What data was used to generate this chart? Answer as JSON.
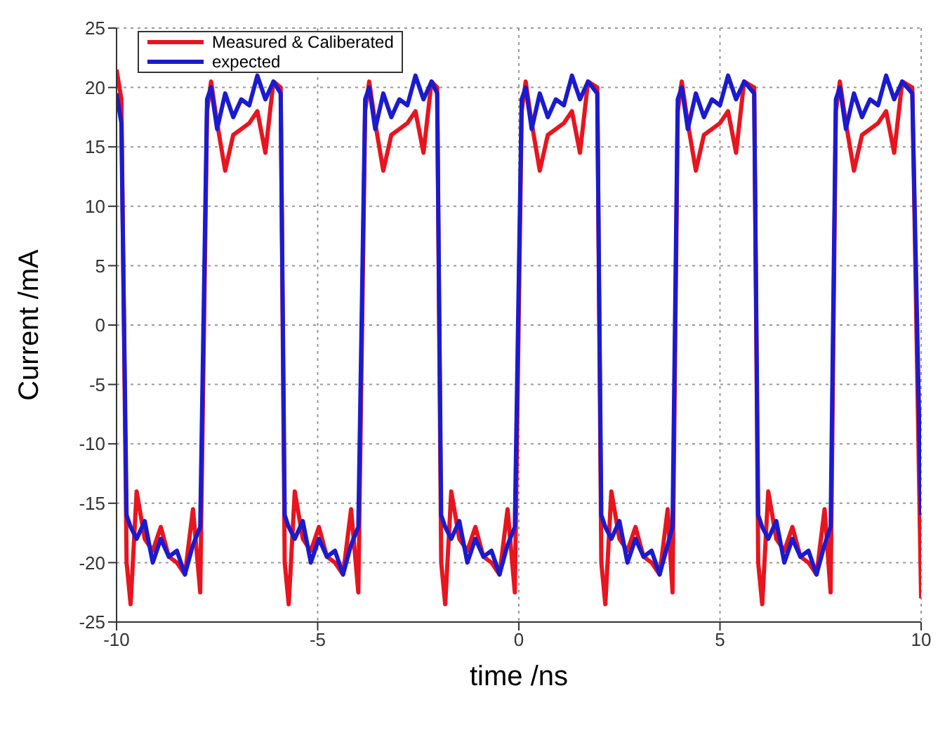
{
  "chart_data": {
    "type": "line",
    "xlabel": "time /ns",
    "ylabel": "Current /mA",
    "x": [
      -10,
      -9.88,
      -9.75,
      -9.65,
      -9.5,
      -9.3,
      -9.1,
      -8.9,
      -8.7,
      -8.5,
      -8.3,
      -8.1,
      -7.92,
      -7.75,
      -7.65,
      -7.5,
      -7.3,
      -7.1,
      -6.9,
      -6.7,
      -6.5,
      -6.3,
      -6.1,
      -5.92,
      -5.82,
      -5.72,
      -5.57,
      -5.37,
      -5.17,
      -4.97,
      -4.77,
      -4.57,
      -4.37,
      -4.17,
      -3.99,
      -3.82,
      -3.72,
      -3.57,
      -3.37,
      -3.17,
      -2.97,
      -2.77,
      -2.57,
      -2.37,
      -2.17,
      -2.03,
      -1.93,
      -1.83,
      -1.68,
      -1.48,
      -1.28,
      -1.08,
      -0.88,
      -0.68,
      -0.48,
      -0.28,
      -0.1,
      0.07,
      0.17,
      0.32,
      0.52,
      0.72,
      0.92,
      1.12,
      1.32,
      1.52,
      1.72,
      1.95,
      2.05,
      2.15,
      2.3,
      2.5,
      2.7,
      2.9,
      3.1,
      3.3,
      3.5,
      3.7,
      3.82,
      3.95,
      4.05,
      4.2,
      4.4,
      4.6,
      4.8,
      5.0,
      5.2,
      5.4,
      5.6,
      5.85,
      5.95,
      6.05,
      6.2,
      6.4,
      6.6,
      6.8,
      7.0,
      7.2,
      7.4,
      7.6,
      7.75,
      7.88,
      7.98,
      8.13,
      8.33,
      8.53,
      8.73,
      8.93,
      9.13,
      9.33,
      9.53,
      9.78,
      10
    ],
    "series": [
      {
        "name": "Measured & Caliberated",
        "color": "#e8141e",
        "values": [
          21.5,
          19,
          -20,
          -23.5,
          -14,
          -18,
          -19,
          -17,
          -19.5,
          -20,
          -21,
          -15.5,
          -22.5,
          18,
          20.5,
          17,
          13,
          16,
          16.5,
          17,
          18,
          14.5,
          20.5,
          20,
          -20,
          -23.5,
          -14,
          -18,
          -19,
          -17,
          -19.5,
          -20,
          -21,
          -15.5,
          -22.5,
          18,
          20.5,
          17,
          13,
          16,
          16.5,
          17,
          18,
          14.5,
          20.5,
          20,
          -20,
          -23.5,
          -14,
          -18,
          -19,
          -17,
          -19.5,
          -20,
          -21,
          -15.5,
          -22.5,
          18,
          20.5,
          17,
          13,
          16,
          16.5,
          17,
          18,
          14.5,
          20.5,
          20,
          -20,
          -23.5,
          -14,
          -18,
          -19,
          -17,
          -19.5,
          -20,
          -21,
          -15.5,
          -22.5,
          18,
          20.5,
          17,
          13,
          16,
          16.5,
          17,
          18,
          14.5,
          20.5,
          20,
          -20,
          -23.5,
          -14,
          -18,
          -19,
          -17,
          -19.5,
          -20,
          -21,
          -15.5,
          -22.5,
          18,
          20.5,
          17,
          13,
          16,
          16.5,
          17,
          18,
          14.5,
          20.5,
          20,
          -23
        ]
      },
      {
        "name": "expected",
        "color": "#1a1ad0",
        "values": [
          19.5,
          17,
          -16,
          -17,
          -18,
          -16.5,
          -20,
          -18,
          -19.5,
          -19,
          -21,
          -18.5,
          -17,
          19,
          20,
          16.5,
          19.5,
          17.5,
          19,
          18.5,
          21,
          19,
          20.5,
          19.5,
          -16,
          -17,
          -18,
          -16.5,
          -20,
          -18,
          -19.5,
          -19,
          -21,
          -18.5,
          -17,
          19,
          20,
          16.5,
          19.5,
          17.5,
          19,
          18.5,
          21,
          19,
          20.5,
          19.5,
          -16,
          -17,
          -18,
          -16.5,
          -20,
          -18,
          -19.5,
          -19,
          -21,
          -18.5,
          -17,
          19,
          20,
          16.5,
          19.5,
          17.5,
          19,
          18.5,
          21,
          19,
          20.5,
          19.5,
          -16,
          -17,
          -18,
          -16.5,
          -20,
          -18,
          -19.5,
          -19,
          -21,
          -18.5,
          -17,
          19,
          20,
          16.5,
          19.5,
          17.5,
          19,
          18.5,
          21,
          19,
          20.5,
          19.5,
          -16,
          -17,
          -18,
          -16.5,
          -20,
          -18,
          -19.5,
          -19,
          -21,
          -18.5,
          -17,
          19,
          20,
          16.5,
          19.5,
          17.5,
          19,
          18.5,
          21,
          19,
          20.5,
          19.5,
          -16
        ]
      }
    ],
    "xlim": [
      -10,
      10
    ],
    "xticks": [
      -10,
      -5,
      0,
      5,
      10
    ],
    "ylim": [
      -25,
      25
    ],
    "yticks": [
      -25,
      -20,
      -15,
      -10,
      -5,
      0,
      5,
      10,
      15,
      20,
      25
    ],
    "grid": true,
    "legend": "top left",
    "marker": "none",
    "line_style": "solid"
  }
}
